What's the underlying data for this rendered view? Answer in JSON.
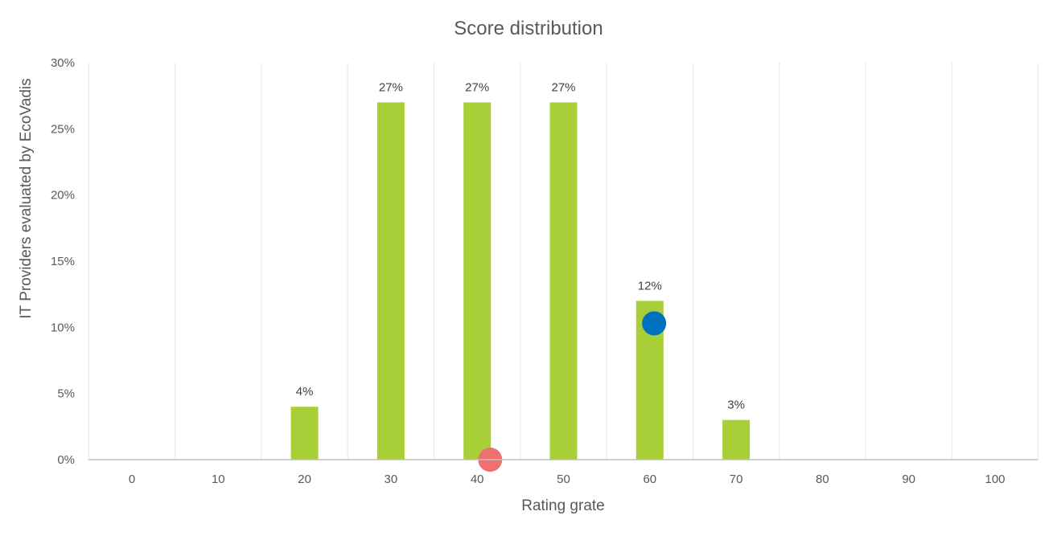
{
  "chart_data": {
    "type": "bar",
    "title": "Score distribution",
    "xlabel": "Rating grate",
    "ylabel": "IT Providers evaluated by EcoVadis",
    "categories": [
      "0",
      "10",
      "20",
      "30",
      "40",
      "50",
      "60",
      "70",
      "80",
      "90",
      "100"
    ],
    "x_values": [
      0,
      10,
      20,
      30,
      40,
      50,
      60,
      70,
      80,
      90,
      100
    ],
    "values": [
      0,
      0,
      4,
      27,
      27,
      27,
      12,
      3,
      0,
      0,
      0
    ],
    "data_labels": [
      "",
      "",
      "4%",
      "27%",
      "27%",
      "27%",
      "12%",
      "3%",
      "",
      "",
      ""
    ],
    "ylim": [
      0,
      30
    ],
    "y_ticks": [
      0,
      5,
      10,
      15,
      20,
      25,
      30
    ],
    "y_tick_labels": [
      "0%",
      "5%",
      "10%",
      "15%",
      "20%",
      "25%",
      "30%"
    ],
    "grid": "vertical",
    "legend": "none",
    "colors": {
      "bar": "#a8cf38",
      "grid": "#e6e6e6",
      "axis": "#bfbfbf",
      "marker_blue": "#0070c0",
      "marker_red": "#f07070"
    },
    "markers": [
      {
        "name": "blue-marker",
        "x": 60.5,
        "y": 10.3,
        "color": "#0070c0"
      },
      {
        "name": "red-marker",
        "x": 41.5,
        "y": 0,
        "color": "#f07070"
      }
    ]
  }
}
